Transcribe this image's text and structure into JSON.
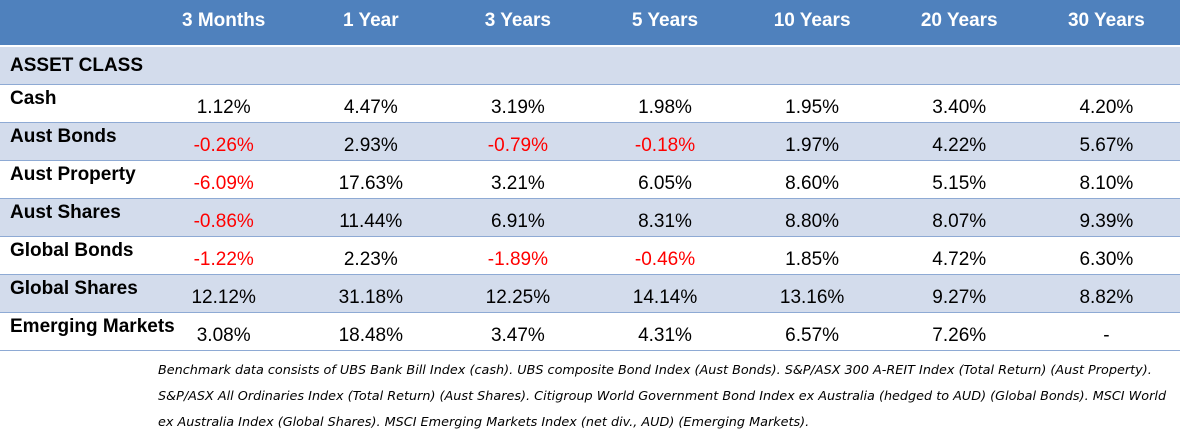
{
  "table": {
    "columns": [
      "3 Months",
      "1 Year",
      "3 Years",
      "5 Years",
      "10 Years",
      "20 Years",
      "30 Years"
    ],
    "section_label": "ASSET CLASS",
    "rows": [
      {
        "label": "Cash",
        "values": [
          "1.12%",
          "4.47%",
          "3.19%",
          "1.98%",
          "1.95%",
          "3.40%",
          "4.20%"
        ],
        "negative": [
          false,
          false,
          false,
          false,
          false,
          false,
          false
        ]
      },
      {
        "label": "Aust Bonds",
        "values": [
          "-0.26%",
          "2.93%",
          "-0.79%",
          "-0.18%",
          "1.97%",
          "4.22%",
          "5.67%"
        ],
        "negative": [
          true,
          false,
          true,
          true,
          false,
          false,
          false
        ]
      },
      {
        "label": "Aust Property",
        "values": [
          "-6.09%",
          "17.63%",
          "3.21%",
          "6.05%",
          "8.60%",
          "5.15%",
          "8.10%"
        ],
        "negative": [
          true,
          false,
          false,
          false,
          false,
          false,
          false
        ]
      },
      {
        "label": "Aust Shares",
        "values": [
          "-0.86%",
          "11.44%",
          "6.91%",
          "8.31%",
          "8.80%",
          "8.07%",
          "9.39%"
        ],
        "negative": [
          true,
          false,
          false,
          false,
          false,
          false,
          false
        ]
      },
      {
        "label": "Global Bonds",
        "values": [
          "-1.22%",
          "2.23%",
          "-1.89%",
          "-0.46%",
          "1.85%",
          "4.72%",
          "6.30%"
        ],
        "negative": [
          true,
          false,
          true,
          true,
          false,
          false,
          false
        ]
      },
      {
        "label": "Global Shares",
        "values": [
          "12.12%",
          "31.18%",
          "12.25%",
          "14.14%",
          "13.16%",
          "9.27%",
          "8.82%"
        ],
        "negative": [
          false,
          false,
          false,
          false,
          false,
          false,
          false
        ]
      },
      {
        "label": "Emerging Markets",
        "values": [
          "3.08%",
          "18.48%",
          "3.47%",
          "4.31%",
          "6.57%",
          "7.26%",
          "-"
        ],
        "negative": [
          false,
          false,
          false,
          false,
          false,
          false,
          false
        ]
      }
    ]
  },
  "footnote": "Benchmark data consists of UBS Bank Bill Index (cash). UBS composite Bond Index (Aust Bonds). S&P/ASX 300 A-REIT Index (Total Return) (Aust Property). S&P/ASX All Ordinaries Index (Total Return) (Aust Shares). Citigroup World Government Bond Index ex Australia (hedged to AUD) (Global Bonds). MSCI World ex Australia Index (Global Shares). MSCI Emerging Markets Index (net div., AUD) (Emerging Markets).",
  "colors": {
    "header_bg": "#4f81bd",
    "header_text": "#ffffff",
    "band_bg": "#d3dcec",
    "negative_text": "#ff0000",
    "rule": "#8eaad4"
  }
}
